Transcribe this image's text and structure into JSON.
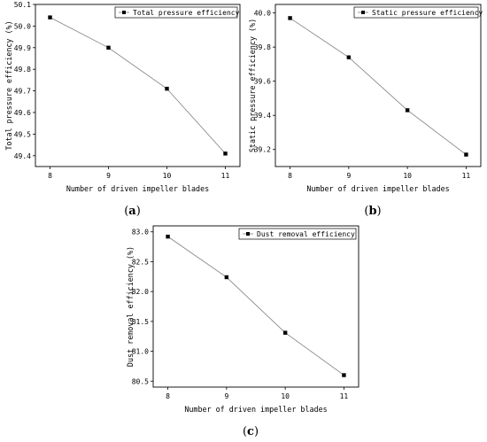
{
  "chart_data": [
    {
      "type": "line",
      "panel_label": "(a)",
      "panel_letter": "a",
      "x": [
        8,
        9,
        10,
        11
      ],
      "series": [
        {
          "name": "Total pressure efficiency",
          "values": [
            50.04,
            49.9,
            49.71,
            49.41
          ]
        }
      ],
      "xlabel": "Number of driven impeller blades",
      "ylabel": "Total pressure efficiency (%)",
      "xlim": [
        7.75,
        11.25
      ],
      "ylim": [
        49.35,
        50.1
      ],
      "xticks": [
        8,
        9,
        10,
        11
      ],
      "yticks": [
        49.4,
        49.5,
        49.6,
        49.7,
        49.8,
        49.9,
        50.0,
        50.1
      ],
      "ytick_labels": [
        "49.4",
        "49.5",
        "49.6",
        "49.7",
        "49.8",
        "49.9",
        "50.0",
        "50.1"
      ],
      "legend_position": "top-right",
      "grid": false,
      "line_color": "#808080",
      "marker_color": "#000000"
    },
    {
      "type": "line",
      "panel_label": "(b)",
      "panel_letter": "b",
      "x": [
        8,
        9,
        10,
        11
      ],
      "series": [
        {
          "name": "Static pressure efficiency",
          "values": [
            39.97,
            39.74,
            39.43,
            39.17
          ]
        }
      ],
      "xlabel": "Number of driven impeller blades",
      "ylabel": "Static pressure efficiency (%)",
      "xlim": [
        7.75,
        11.25
      ],
      "ylim": [
        39.1,
        40.05
      ],
      "xticks": [
        8,
        9,
        10,
        11
      ],
      "yticks": [
        39.2,
        39.4,
        39.6,
        39.8,
        40.0
      ],
      "ytick_labels": [
        "39.2",
        "39.4",
        "39.6",
        "39.8",
        "40.0"
      ],
      "legend_position": "top-right",
      "grid": false,
      "line_color": "#808080",
      "marker_color": "#000000"
    },
    {
      "type": "line",
      "panel_label": "(c)",
      "panel_letter": "c",
      "x": [
        8,
        9,
        10,
        11
      ],
      "series": [
        {
          "name": "Dust removal efficiency",
          "values": [
            82.92,
            82.24,
            81.31,
            80.6
          ]
        }
      ],
      "xlabel": "Number of driven impeller blades",
      "ylabel": "Dust removal efficiency (%)",
      "xlim": [
        7.75,
        11.25
      ],
      "ylim": [
        80.4,
        83.1
      ],
      "xticks": [
        8,
        9,
        10,
        11
      ],
      "yticks": [
        80.5,
        81.0,
        81.5,
        82.0,
        82.5,
        83.0
      ],
      "ytick_labels": [
        "80.5",
        "81.0",
        "81.5",
        "82.0",
        "82.5",
        "83.0"
      ],
      "legend_position": "top-right",
      "grid": false,
      "line_color": "#808080",
      "marker_color": "#000000"
    }
  ]
}
